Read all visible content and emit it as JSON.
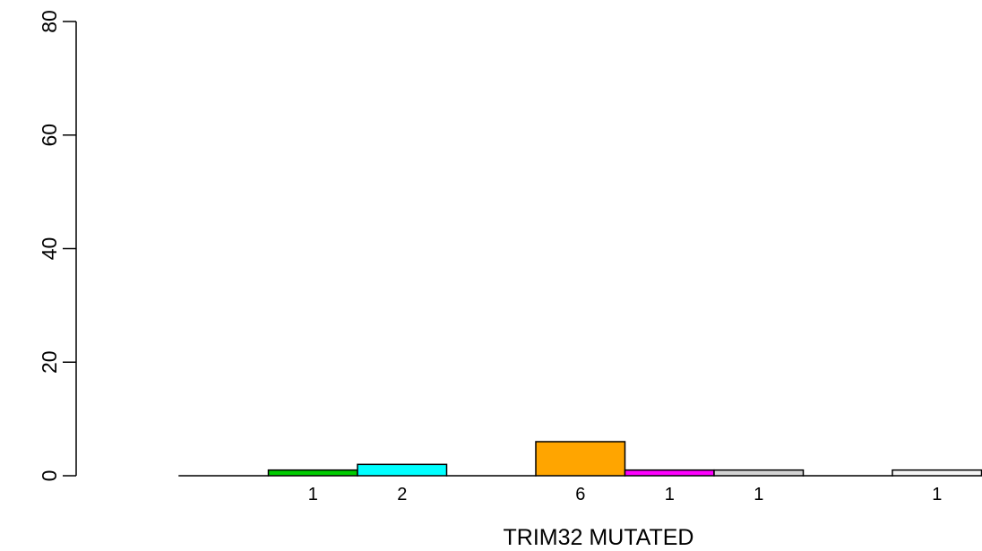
{
  "chart_data": {
    "type": "bar",
    "title": "",
    "xlabel": "TRIM32 MUTATED",
    "ylabel": "",
    "ylim": [
      0,
      80
    ],
    "yticks": [
      0,
      20,
      40,
      60,
      80
    ],
    "grid": false,
    "bars": [
      {
        "value": 0,
        "label": "",
        "color": "#ffffff"
      },
      {
        "value": 1,
        "label": "1",
        "color": "#00cc00"
      },
      {
        "value": 2,
        "label": "2",
        "color": "#00ffff"
      },
      {
        "value": 0,
        "label": "",
        "color": "#ffffff"
      },
      {
        "value": 6,
        "label": "6",
        "color": "#ffa500"
      },
      {
        "value": 1,
        "label": "1",
        "color": "#ff00ff"
      },
      {
        "value": 1,
        "label": "1",
        "color": "#d3d3d3"
      },
      {
        "value": 0,
        "label": "",
        "color": "#ffffff"
      },
      {
        "value": 1,
        "label": "1",
        "color": "#f5f5f5"
      }
    ]
  }
}
